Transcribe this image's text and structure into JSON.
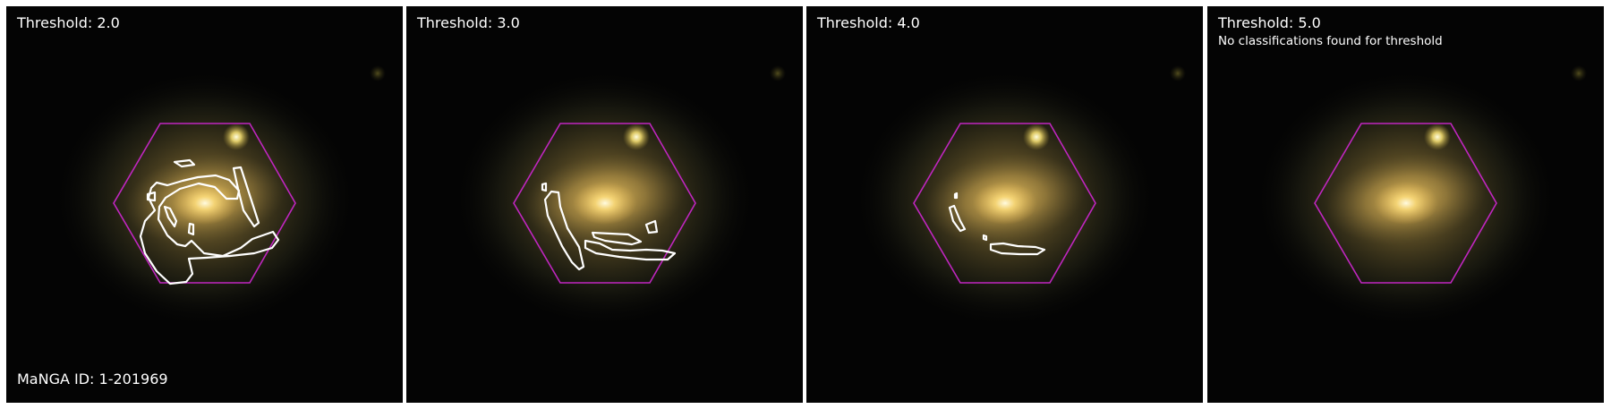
{
  "figure": {
    "manga_id_label": "MaNGA ID: 1-201969",
    "panels": [
      {
        "threshold_label": "Threshold: 2.0",
        "note": ""
      },
      {
        "threshold_label": "Threshold: 3.0",
        "note": ""
      },
      {
        "threshold_label": "Threshold: 4.0",
        "note": ""
      },
      {
        "threshold_label": "Threshold: 5.0",
        "note": "No classifications found for threshold"
      }
    ]
  },
  "colors": {
    "hexagon": "#c026c0",
    "contour": "#ffffff",
    "sky": "#040404",
    "galaxy_core": "#fff4b0",
    "galaxy_halo": "#8a7530"
  }
}
